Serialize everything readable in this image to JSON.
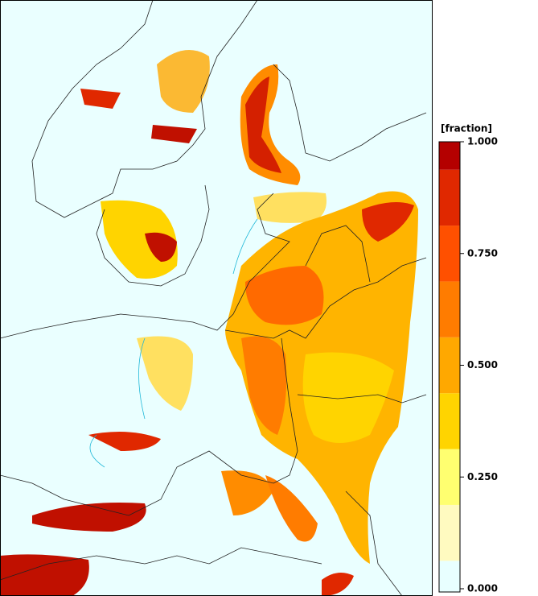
{
  "legend": {
    "title": "[fraction]",
    "colors": [
      "#e8ffff",
      "#fffac0",
      "#ffff70",
      "#ffd400",
      "#ffa800",
      "#ff7c00",
      "#ff5000",
      "#e02800",
      "#b40000"
    ],
    "ticks": [
      {
        "value": 1,
        "label": "1.000"
      },
      {
        "value": 0.75,
        "label": "0.750"
      },
      {
        "value": 0.5,
        "label": "0.500"
      },
      {
        "value": 0.25,
        "label": "0.250"
      },
      {
        "value": 0,
        "label": "0.000"
      }
    ],
    "range": [
      0,
      1
    ]
  }
}
